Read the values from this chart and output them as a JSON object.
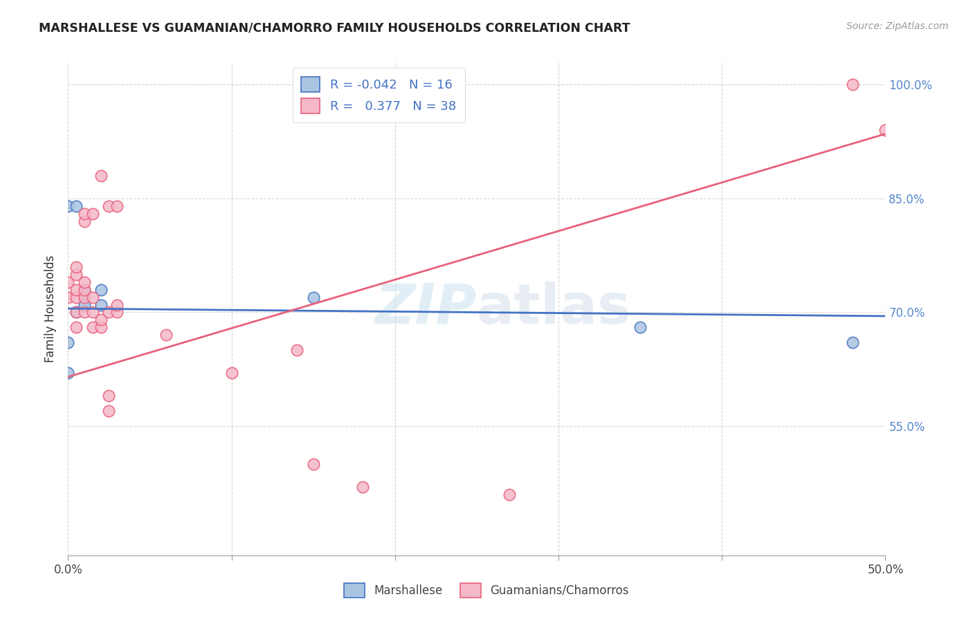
{
  "title": "MARSHALLESE VS GUAMANIAN/CHAMORRO FAMILY HOUSEHOLDS CORRELATION CHART",
  "source": "Source: ZipAtlas.com",
  "ylabel": "Family Households",
  "xmin": 0.0,
  "xmax": 0.5,
  "ymin": 0.38,
  "ymax": 1.03,
  "yticks": [
    0.55,
    0.7,
    0.85,
    1.0
  ],
  "ytick_labels": [
    "55.0%",
    "70.0%",
    "85.0%",
    "100.0%"
  ],
  "xticks": [
    0.0,
    0.1,
    0.2,
    0.3,
    0.4,
    0.5
  ],
  "xtick_labels": [
    "0.0%",
    "",
    "",
    "",
    "",
    "50.0%"
  ],
  "blue_color": "#a8c4e0",
  "pink_color": "#f4b8c8",
  "blue_line_color": "#4472c4",
  "pink_line_color": "#e8607a",
  "watermark": "ZIPatlas",
  "blue_trend_x0": 0.0,
  "blue_trend_y0": 0.705,
  "blue_trend_x1": 0.5,
  "blue_trend_y1": 0.695,
  "pink_trend_x0": 0.0,
  "pink_trend_y0": 0.615,
  "pink_trend_x1": 0.5,
  "pink_trend_y1": 0.935,
  "marshallese_x": [
    0.0,
    0.0,
    0.0,
    0.005,
    0.005,
    0.01,
    0.01,
    0.01,
    0.02,
    0.02,
    0.15,
    0.35,
    0.48
  ],
  "marshallese_y": [
    0.62,
    0.66,
    0.84,
    0.7,
    0.84,
    0.72,
    0.73,
    0.71,
    0.73,
    0.71,
    0.72,
    0.68,
    0.66
  ],
  "guamanian_x": [
    0.0,
    0.0,
    0.005,
    0.005,
    0.005,
    0.005,
    0.005,
    0.005,
    0.01,
    0.01,
    0.01,
    0.01,
    0.01,
    0.01,
    0.015,
    0.015,
    0.015,
    0.015,
    0.02,
    0.02,
    0.02,
    0.025,
    0.025,
    0.025,
    0.025,
    0.03,
    0.03,
    0.03,
    0.06,
    0.1,
    0.14,
    0.15,
    0.18,
    0.27,
    0.48,
    0.5
  ],
  "guamanian_y": [
    0.72,
    0.74,
    0.68,
    0.7,
    0.72,
    0.73,
    0.75,
    0.76,
    0.7,
    0.72,
    0.73,
    0.74,
    0.82,
    0.83,
    0.68,
    0.7,
    0.72,
    0.83,
    0.68,
    0.69,
    0.88,
    0.57,
    0.59,
    0.7,
    0.84,
    0.7,
    0.71,
    0.84,
    0.67,
    0.62,
    0.65,
    0.5,
    0.47,
    0.46,
    1.0,
    0.94
  ]
}
